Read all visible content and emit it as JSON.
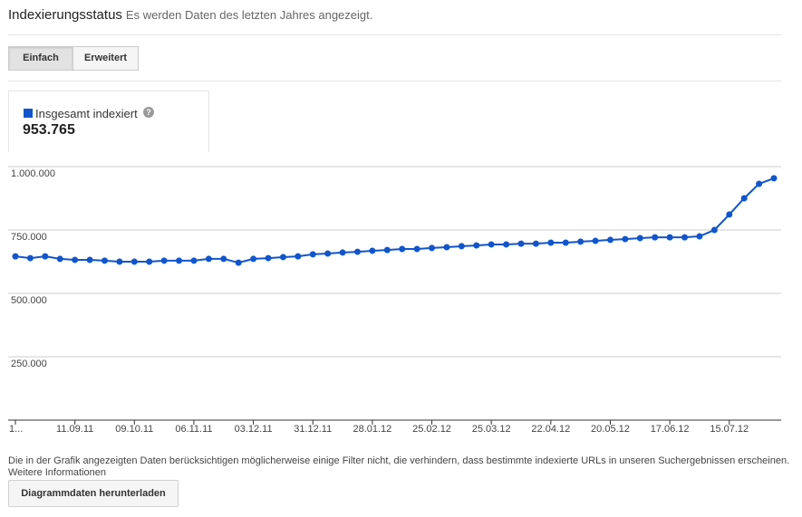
{
  "header": {
    "title": "Indexierungsstatus",
    "subtitle": "Es werden Daten des letzten Jahres angezeigt."
  },
  "tabs": [
    "Einfach",
    "Erweitert"
  ],
  "chart_data": {
    "type": "line",
    "categories": [
      "1...",
      null,
      null,
      null,
      "11.09.11",
      null,
      null,
      null,
      "09.10.11",
      null,
      null,
      null,
      "06.11.11",
      null,
      null,
      null,
      "03.12.11",
      null,
      null,
      null,
      "31.12.11",
      null,
      null,
      null,
      "28.01.12",
      null,
      null,
      null,
      "25.02.12",
      null,
      null,
      null,
      "25.03.12",
      null,
      null,
      null,
      "22.04.12",
      null,
      null,
      null,
      "20.05.12",
      null,
      null,
      null,
      "17.06.12",
      null,
      null,
      null,
      "15.07.12",
      null,
      null,
      null
    ],
    "series": [
      {
        "name": "Insgesamt indexiert",
        "color": "#1155cc",
        "values": [
          646000,
          639000,
          646000,
          636000,
          632000,
          632000,
          629000,
          625000,
          625000,
          625000,
          629000,
          629000,
          629000,
          636000,
          636000,
          621000,
          636000,
          639000,
          643000,
          646000,
          654000,
          657000,
          661000,
          664000,
          668000,
          671000,
          675000,
          675000,
          679000,
          682000,
          686000,
          689000,
          693000,
          693000,
          696000,
          696000,
          700000,
          700000,
          704000,
          707000,
          711000,
          714000,
          718000,
          721000,
          721000,
          721000,
          725000,
          750000,
          811000,
          875000,
          932000,
          954000
        ]
      }
    ],
    "total": "953.765",
    "ylim": [
      0,
      1000000
    ],
    "yticks": [
      {
        "value": 250000,
        "label": "250.000"
      },
      {
        "value": 500000,
        "label": "500.000"
      },
      {
        "value": 750000,
        "label": "750.000"
      },
      {
        "value": 1000000,
        "label": "1.000.000"
      }
    ],
    "grid": true
  },
  "footer": {
    "note": "Die in der Grafik angezeigten Daten berücksichtigen möglicherweise einige Filter nicht, die verhindern, dass bestimmte indexierte URLs in unseren Suchergebnissen erscheinen.",
    "link": "Weitere Informationen",
    "button": "Diagrammdaten herunterladen"
  }
}
